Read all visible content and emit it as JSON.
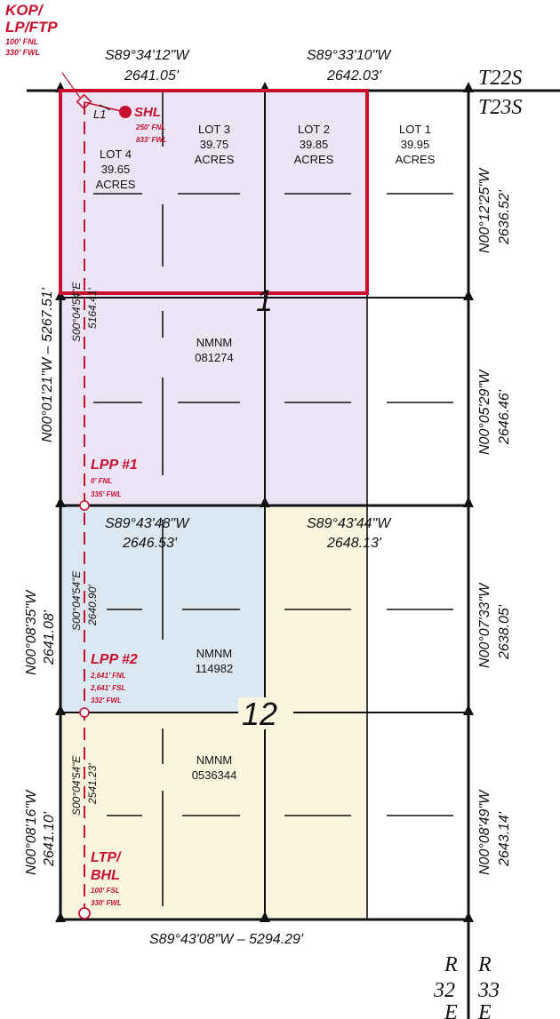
{
  "colors": {
    "red": "#c8102e",
    "lavender": "#ece4f4",
    "blue": "#dbe8f2",
    "cream": "#f9f5df",
    "line": "#111111"
  },
  "kop_label": {
    "line1": "KOP/",
    "line2": "LP/FTP",
    "line3": "100' FNL",
    "line4": "330' FWL"
  },
  "shl_label": {
    "l1": "L1",
    "name": "SHL",
    "fnl": "250' FNL",
    "fwl": "833' FWL"
  },
  "lpp1_label": {
    "name": "LPP #1",
    "fnl": "0' FNL",
    "fwl": "335' FWL"
  },
  "lpp2_label": {
    "name": "LPP #2",
    "fnl": "2,641' FNL",
    "fsl": "2,641' FSL",
    "fwl": "332' FWL"
  },
  "ltp_label": {
    "line1": "LTP/",
    "line2": "BHL",
    "fsl": "100' FSL",
    "fwl": "330' FWL"
  },
  "bearings": {
    "top_left_bearing": "S89°34'12\"W",
    "top_left_distance": "2641.05'",
    "top_right_bearing": "S89°33'10\"W",
    "top_right_distance": "2642.03'",
    "mid_left_bearing": "S89°43'48\"W",
    "mid_left_distance": "2646.53'",
    "mid_right_bearing": "S89°43'44\"W",
    "mid_right_distance": "2648.13'",
    "bottom": "S89°43'08\"W – 5294.29'",
    "west_sec1": "N00°01'21\"W – 5267.51'",
    "east_sec1_upper_bearing": "N00°12'25\"W",
    "east_sec1_upper_distance": "2636.52'",
    "east_sec1_lower_bearing": "N00°05'29\"W",
    "east_sec1_lower_distance": "2646.46'",
    "west_sec12_upper_bearing": "N00°08'35\"W",
    "west_sec12_upper_distance": "2641.08'",
    "west_sec12_lower_bearing": "N00°08'16\"W",
    "west_sec12_lower_distance": "2641.10'",
    "east_sec12_upper_bearing": "N00°07'33\"W",
    "east_sec12_upper_distance": "2638.05'",
    "east_sec12_lower_bearing": "N00°08'49\"W",
    "east_sec12_lower_distance": "2643.14'",
    "well_seg1_bearing": "S00°04'54\"E",
    "well_seg1_distance": "5164.41'",
    "well_seg2_bearing": "S00°04'54\"E",
    "well_seg2_distance": "2640.90'",
    "well_seg3_bearing": "S00°04'54\"E",
    "well_seg3_distance": "2541.23'"
  },
  "lots": [
    {
      "name": "LOT 4",
      "acres": "39.65",
      "unit": "ACRES"
    },
    {
      "name": "LOT 3",
      "acres": "39.75",
      "unit": "ACRES"
    },
    {
      "name": "LOT 2",
      "acres": "39.85",
      "unit": "ACRES"
    },
    {
      "name": "LOT 1",
      "acres": "39.95",
      "unit": "ACRES"
    }
  ],
  "leases": {
    "sec1": {
      "prefix": "NMNM",
      "number": "081274"
    },
    "sec12_nw": {
      "prefix": "NMNM",
      "number": "114982"
    },
    "sec12_sw": {
      "prefix": "NMNM",
      "number": "0536344"
    }
  },
  "sections": {
    "upper": "1",
    "lower": "12"
  },
  "townships": {
    "north": "T22S",
    "south": "T23S"
  },
  "ranges": {
    "west_r": "R",
    "west_num": "32",
    "west_dir": "E",
    "east_r": "R",
    "east_num": "33",
    "east_dir": "E"
  }
}
